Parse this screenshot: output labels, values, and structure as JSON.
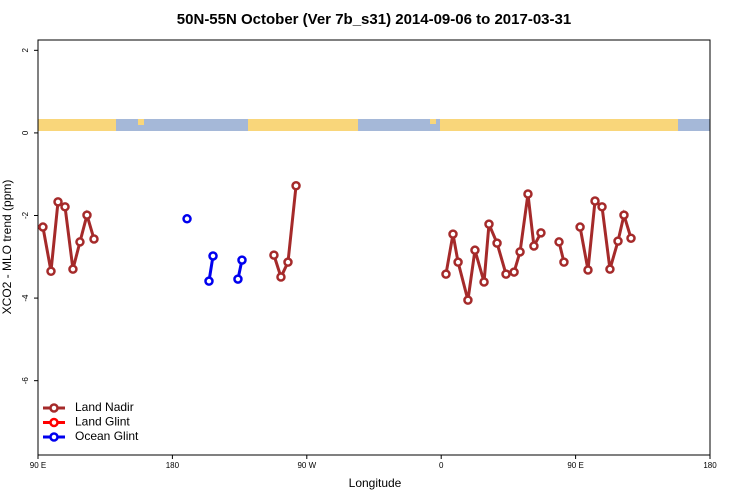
{
  "chart_data": {
    "type": "line",
    "title": "50N-55N October (Ver 7b_s31)   2014-09-06 to 2017-03-31",
    "x_label": "Longitude",
    "y_label": "XCO2 - MLO trend (ppm)",
    "xlim": [
      90,
      540
    ],
    "xticks": [
      {
        "value": 90,
        "label": "90 E"
      },
      {
        "value": 180,
        "label": "180"
      },
      {
        "value": 270,
        "label": "90 W"
      },
      {
        "value": 360,
        "label": "0"
      },
      {
        "value": 450,
        "label": "90 E"
      },
      {
        "value": 540,
        "label": "180"
      }
    ],
    "ylim": [
      -7.8,
      2.25
    ],
    "yticks": [
      2,
      0,
      -2,
      -4,
      -6
    ],
    "legend": "bottom-left",
    "series": [
      {
        "name": "Land Nadir",
        "color": "#a52a2a",
        "x": [
          93.3,
          98.7,
          103.4,
          108.1,
          113.4,
          118.1,
          122.8,
          127.5,
          null,
          248.0,
          252.7,
          257.4,
          262.8,
          null,
          363.2,
          367.9,
          371.3,
          377.9,
          382.6,
          388.7,
          392.0,
          397.4,
          403.4,
          408.8,
          412.8,
          418.1,
          422.1,
          426.8,
          null,
          438.9,
          442.2,
          null,
          453.0,
          458.3,
          463.0,
          467.7,
          473.0,
          478.4,
          482.4,
          487.1
        ],
        "values": [
          -2.28,
          -3.35,
          -1.67,
          -1.79,
          -3.3,
          -2.64,
          -1.99,
          -2.57,
          null,
          -2.96,
          -3.49,
          -3.13,
          -1.28,
          null,
          -3.42,
          -2.45,
          -3.13,
          -4.05,
          -2.84,
          -3.61,
          -2.21,
          -2.67,
          -3.42,
          -3.37,
          -2.88,
          -1.48,
          -2.74,
          -2.42,
          null,
          -2.64,
          -3.13,
          null,
          -2.28,
          -3.32,
          -1.65,
          -1.79,
          -3.3,
          -2.62,
          -1.99,
          -2.55
        ]
      },
      {
        "name": "Land Glint",
        "color": "#ff0000",
        "x": [],
        "values": []
      },
      {
        "name": "Ocean Glint",
        "color": "#0000ee",
        "x": [
          189.8,
          null,
          204.5,
          207.2,
          null,
          223.9,
          226.6
        ],
        "values": [
          -2.08,
          null,
          -3.59,
          -2.98,
          null,
          -3.54,
          -3.08
        ]
      }
    ]
  }
}
